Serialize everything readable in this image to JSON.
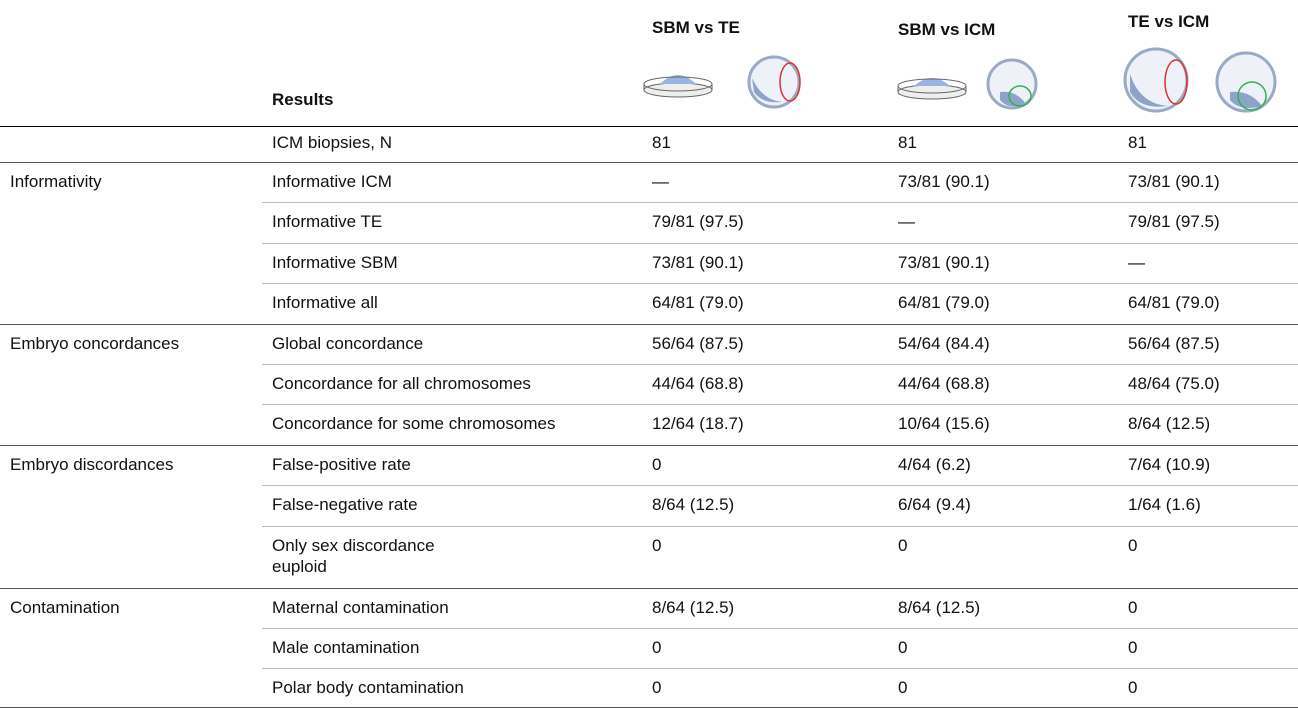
{
  "header": {
    "results_label": "Results",
    "columns": [
      "SBM vs TE",
      "SBM vs ICM",
      "TE vs ICM"
    ]
  },
  "groups": [
    {
      "rows": [
        {
          "label": [
            "ICM biopsies, N"
          ],
          "values": [
            "81",
            "81",
            "81"
          ]
        }
      ]
    },
    {
      "label": "Informativity",
      "rows": [
        {
          "label": [
            "Informative ICM"
          ],
          "values": [
            "—",
            "73/81 (90.1)",
            "73/81 (90.1)"
          ]
        },
        {
          "label": [
            "Informative TE"
          ],
          "values": [
            "79/81 (97.5)",
            "—",
            "79/81 (97.5)"
          ]
        },
        {
          "label": [
            "Informative SBM"
          ],
          "values": [
            "73/81 (90.1)",
            "73/81 (90.1)",
            "—"
          ]
        },
        {
          "label": [
            "Informative all"
          ],
          "values": [
            "64/81 (79.0)",
            "64/81 (79.0)",
            "64/81 (79.0)"
          ]
        }
      ]
    },
    {
      "label": "Embryo concordances",
      "rows": [
        {
          "label": [
            "Global concordance"
          ],
          "values": [
            "56/64 (87.5)",
            "54/64 (84.4)",
            "56/64 (87.5)"
          ]
        },
        {
          "label": [
            "Concordance for all chromosomes"
          ],
          "values": [
            "44/64 (68.8)",
            "44/64 (68.8)",
            "48/64 (75.0)"
          ]
        },
        {
          "label": [
            "Concordance for some chromosomes"
          ],
          "values": [
            "12/64 (18.7)",
            "10/64 (15.6)",
            "8/64 (12.5)"
          ]
        }
      ]
    },
    {
      "label": "Embryo discordances",
      "rows": [
        {
          "label": [
            "False-positive rate"
          ],
          "values": [
            "0",
            "4/64 (6.2)",
            "7/64 (10.9)"
          ]
        },
        {
          "label": [
            "False-negative rate"
          ],
          "values": [
            "8/64 (12.5)",
            "6/64 (9.4)",
            "1/64 (1.6)"
          ]
        },
        {
          "label": [
            "Only sex discordance",
            "euploid"
          ],
          "values": [
            "0",
            "0",
            "0"
          ]
        }
      ]
    },
    {
      "label": "Contamination",
      "rows": [
        {
          "label": [
            "Maternal contamination"
          ],
          "values": [
            "8/64 (12.5)",
            "8/64 (12.5)",
            "0"
          ]
        },
        {
          "label": [
            "Male contamination"
          ],
          "values": [
            "0",
            "0",
            "0"
          ]
        },
        {
          "label": [
            "Polar body contamination"
          ],
          "values": [
            "0",
            "0",
            "0"
          ]
        }
      ]
    }
  ]
}
